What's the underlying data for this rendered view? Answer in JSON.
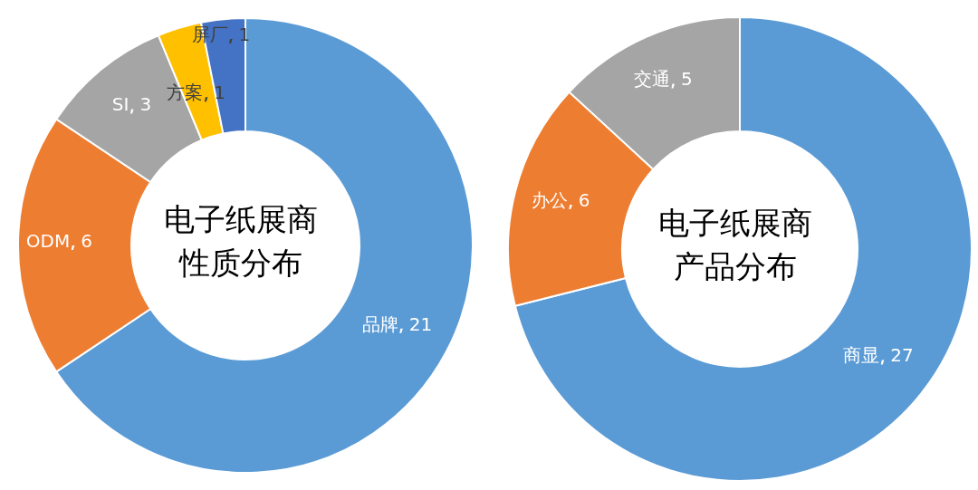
{
  "chart_data": [
    {
      "type": "donut",
      "title": "电子纸展商性质分布",
      "categories": [
        "品牌",
        "ODM",
        "SI",
        "方案",
        "屏厂"
      ],
      "values": [
        21,
        6,
        3,
        1,
        1
      ],
      "colors": [
        "#5b9bd5",
        "#ed7d31",
        "#a5a5a5",
        "#ffc000",
        "#4472c4"
      ],
      "data_labels": true
    },
    {
      "type": "donut",
      "title": "电子纸展商产品分布",
      "categories": [
        "商显",
        "办公",
        "交通"
      ],
      "values": [
        27,
        6,
        5
      ],
      "colors": [
        "#5b9bd5",
        "#ed7d31",
        "#a5a5a5"
      ],
      "data_labels": true
    }
  ]
}
